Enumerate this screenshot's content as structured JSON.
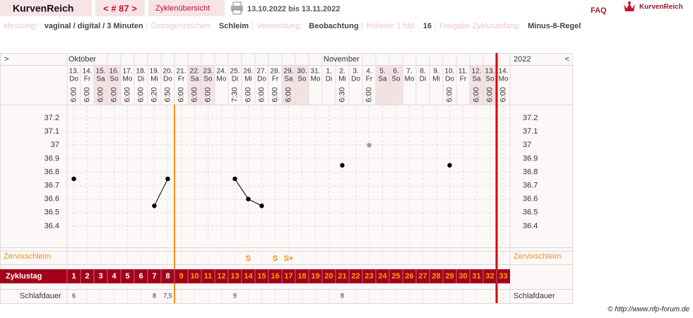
{
  "header": {
    "app_name": "KurvenReich",
    "cycle_nav": "< # 87 >",
    "overview": "Zyklenübersicht",
    "date_range": "13.10.2022 bis 13.11.2022",
    "faq": "FAQ",
    "logo": "KurvenReich"
  },
  "info": [
    {
      "label": "Messung:",
      "value": "vaginal / digital / 3 Minuten"
    },
    {
      "label": "Östrogenzeichen:",
      "value": "Schleim"
    },
    {
      "label": "Verwendung:",
      "value": "Beobachtung"
    },
    {
      "label": "früheste 1.hM:",
      "value": "16"
    },
    {
      "label": "Freigabe Zyklusanfang:",
      "value": "Minus-8-Regel"
    }
  ],
  "chart_data": {
    "type": "line",
    "nav_left": ">",
    "nav_right": "<",
    "year": "2022",
    "months": [
      "Oktober",
      "November"
    ],
    "categories": [
      1,
      2,
      3,
      4,
      5,
      6,
      7,
      8,
      9,
      10,
      11,
      12,
      13,
      14,
      15,
      16,
      17,
      18,
      19,
      20,
      21,
      22,
      23,
      24,
      25,
      26,
      27,
      28,
      29,
      30,
      31,
      32,
      33
    ],
    "dates": [
      "13.",
      "14.",
      "15.",
      "16.",
      "17.",
      "18.",
      "19.",
      "20.",
      "21.",
      "22.",
      "23.",
      "24.",
      "25.",
      "26.",
      "27.",
      "28.",
      "29.",
      "30.",
      "31.",
      "1.",
      "2.",
      "3.",
      "4.",
      "5.",
      "6.",
      "7.",
      "8.",
      "9.",
      "10.",
      "11.",
      "12.",
      "13.",
      "14."
    ],
    "weekdays": [
      "Do",
      "Fr",
      "Sa",
      "So",
      "Mo",
      "Di",
      "Mi",
      "Do",
      "Fr",
      "Sa",
      "So",
      "Mo",
      "Di",
      "Mi",
      "Do",
      "Fr",
      "Sa",
      "So",
      "Mo",
      "Di",
      "Mi",
      "Do",
      "Fr",
      "Sa",
      "So",
      "Mo",
      "Di",
      "Mi",
      "Do",
      "Fr",
      "Sa",
      "So",
      "Mo"
    ],
    "times": [
      "6:00",
      "6:00",
      "6:00",
      "6:00",
      "6:00",
      "6:00",
      "6:20",
      "6:50",
      "6:00",
      "6:00",
      "6:00",
      null,
      "7:30",
      "6:00",
      "6:00",
      "6:00",
      "6:00",
      null,
      null,
      null,
      "6:30",
      null,
      "6:00",
      null,
      null,
      null,
      null,
      null,
      "6:00",
      null,
      "6:00",
      "6:00",
      "6:00"
    ],
    "ylim": [
      36.3,
      37.3
    ],
    "yticks": [
      36.4,
      36.5,
      36.6,
      36.7,
      36.8,
      36.9,
      37,
      37.1,
      37.2
    ],
    "grid": true,
    "series": [
      {
        "color": "#000000",
        "values": [
          36.75,
          null,
          null,
          null,
          null,
          null,
          36.55,
          36.75,
          null,
          null,
          null,
          null,
          36.75,
          36.6,
          36.55,
          null,
          null,
          null,
          null,
          null,
          36.85,
          null,
          null,
          null,
          null,
          null,
          null,
          null,
          36.85,
          null,
          null,
          null,
          null
        ]
      },
      {
        "color": "#999999",
        "values": [
          null,
          null,
          null,
          null,
          null,
          null,
          null,
          null,
          null,
          null,
          null,
          null,
          null,
          null,
          null,
          null,
          null,
          null,
          null,
          null,
          null,
          null,
          37,
          null,
          null,
          null,
          null,
          null,
          null,
          null,
          null,
          null,
          null
        ]
      }
    ],
    "mucus_label": "Zervixschleim",
    "zervixschleim": [
      null,
      null,
      null,
      null,
      null,
      null,
      null,
      null,
      null,
      null,
      null,
      null,
      null,
      "S",
      null,
      "S",
      "S+",
      null,
      null,
      null,
      null,
      null,
      null,
      null,
      null,
      null,
      null,
      null,
      null,
      null,
      null,
      null,
      null
    ],
    "cycle_day_label": "Zyklustag",
    "sleep_label": "Schlafdauer",
    "schlafdauer": [
      "6",
      null,
      null,
      null,
      null,
      null,
      "8",
      "7,5",
      null,
      null,
      null,
      null,
      "9",
      null,
      null,
      null,
      null,
      null,
      null,
      null,
      "8",
      null,
      null,
      null,
      null,
      null,
      null,
      null,
      null,
      null,
      null,
      null,
      null
    ]
  },
  "footer": "© http://www.nfp-forum.de"
}
